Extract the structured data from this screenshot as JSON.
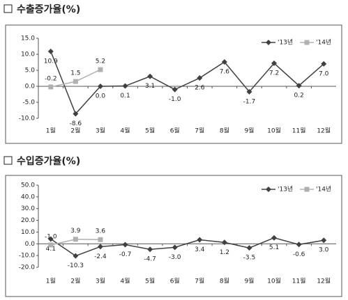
{
  "chart_data": [
    {
      "type": "line",
      "title": "수출증가율(%)",
      "categories": [
        "1월",
        "2월",
        "3월",
        "4월",
        "5월",
        "6월",
        "7월",
        "8월",
        "9월",
        "10월",
        "11월",
        "12월"
      ],
      "series": [
        {
          "name": "'13년",
          "color": "#404040",
          "marker": "diamond",
          "values": [
            10.9,
            -8.6,
            0.0,
            0.1,
            3.1,
            -1.0,
            2.6,
            7.6,
            -1.7,
            7.2,
            0.2,
            7.0
          ],
          "value_labels": [
            "10.9",
            "-8.6",
            "0.0",
            "0.1",
            "3.1",
            "-1.0",
            "2.6",
            "7.6",
            "-1.7",
            "7.2",
            "0.2",
            "7.0"
          ]
        },
        {
          "name": "'14년",
          "color": "#b0b0b0",
          "marker": "square",
          "values": [
            -0.2,
            1.5,
            5.2,
            null,
            null,
            null,
            null,
            null,
            null,
            null,
            null,
            null
          ],
          "value_labels": [
            "-0.2",
            "1.5",
            "5.2",
            null,
            null,
            null,
            null,
            null,
            null,
            null,
            null,
            null
          ]
        }
      ],
      "ylim": [
        -10,
        15
      ],
      "yticks": [
        {
          "value": -10,
          "label": "-10.0"
        },
        {
          "value": -5,
          "label": "-5.0"
        },
        {
          "value": 0,
          "label": "0.0"
        },
        {
          "value": 5,
          "label": "5.0"
        },
        {
          "value": 10,
          "label": "10.0"
        },
        {
          "value": 15,
          "label": "15.0"
        }
      ],
      "legend": "upper right"
    },
    {
      "type": "line",
      "title": "수입증가율(%)",
      "categories": [
        "1월",
        "2월",
        "3월",
        "4월",
        "5월",
        "6월",
        "7월",
        "8월",
        "9월",
        "10월",
        "11월",
        "12월"
      ],
      "series": [
        {
          "name": "'13년",
          "color": "#404040",
          "marker": "diamond",
          "values": [
            4.1,
            -10.3,
            -2.4,
            -0.7,
            -4.7,
            -3.0,
            3.4,
            1.2,
            -3.5,
            5.1,
            -0.6,
            3.0
          ],
          "value_labels": [
            "4.1",
            "-10.3",
            "-2.4",
            "-0.7",
            "-4.7",
            "-3.0",
            "3.4",
            "1.2",
            "-3.5",
            "5.1",
            "-0.6",
            "3.0"
          ]
        },
        {
          "name": "'14년",
          "color": "#b0b0b0",
          "marker": "square",
          "values": [
            -1.0,
            3.9,
            3.6,
            null,
            null,
            null,
            null,
            null,
            null,
            null,
            null,
            null
          ],
          "value_labels": [
            "-1.0",
            "3.9",
            "3.6",
            null,
            null,
            null,
            null,
            null,
            null,
            null,
            null,
            null
          ]
        }
      ],
      "ylim": [
        -20,
        50
      ],
      "yticks": [
        {
          "value": -20,
          "label": "-20.0"
        },
        {
          "value": -10,
          "label": "-10.0"
        },
        {
          "value": 0,
          "label": "0.0"
        },
        {
          "value": 10,
          "label": "10.0"
        },
        {
          "value": 20,
          "label": "20.0"
        },
        {
          "value": 30,
          "label": "30.0"
        },
        {
          "value": 40,
          "label": "40.0"
        },
        {
          "value": 50,
          "label": "50.0"
        }
      ],
      "legend": "upper right"
    }
  ]
}
